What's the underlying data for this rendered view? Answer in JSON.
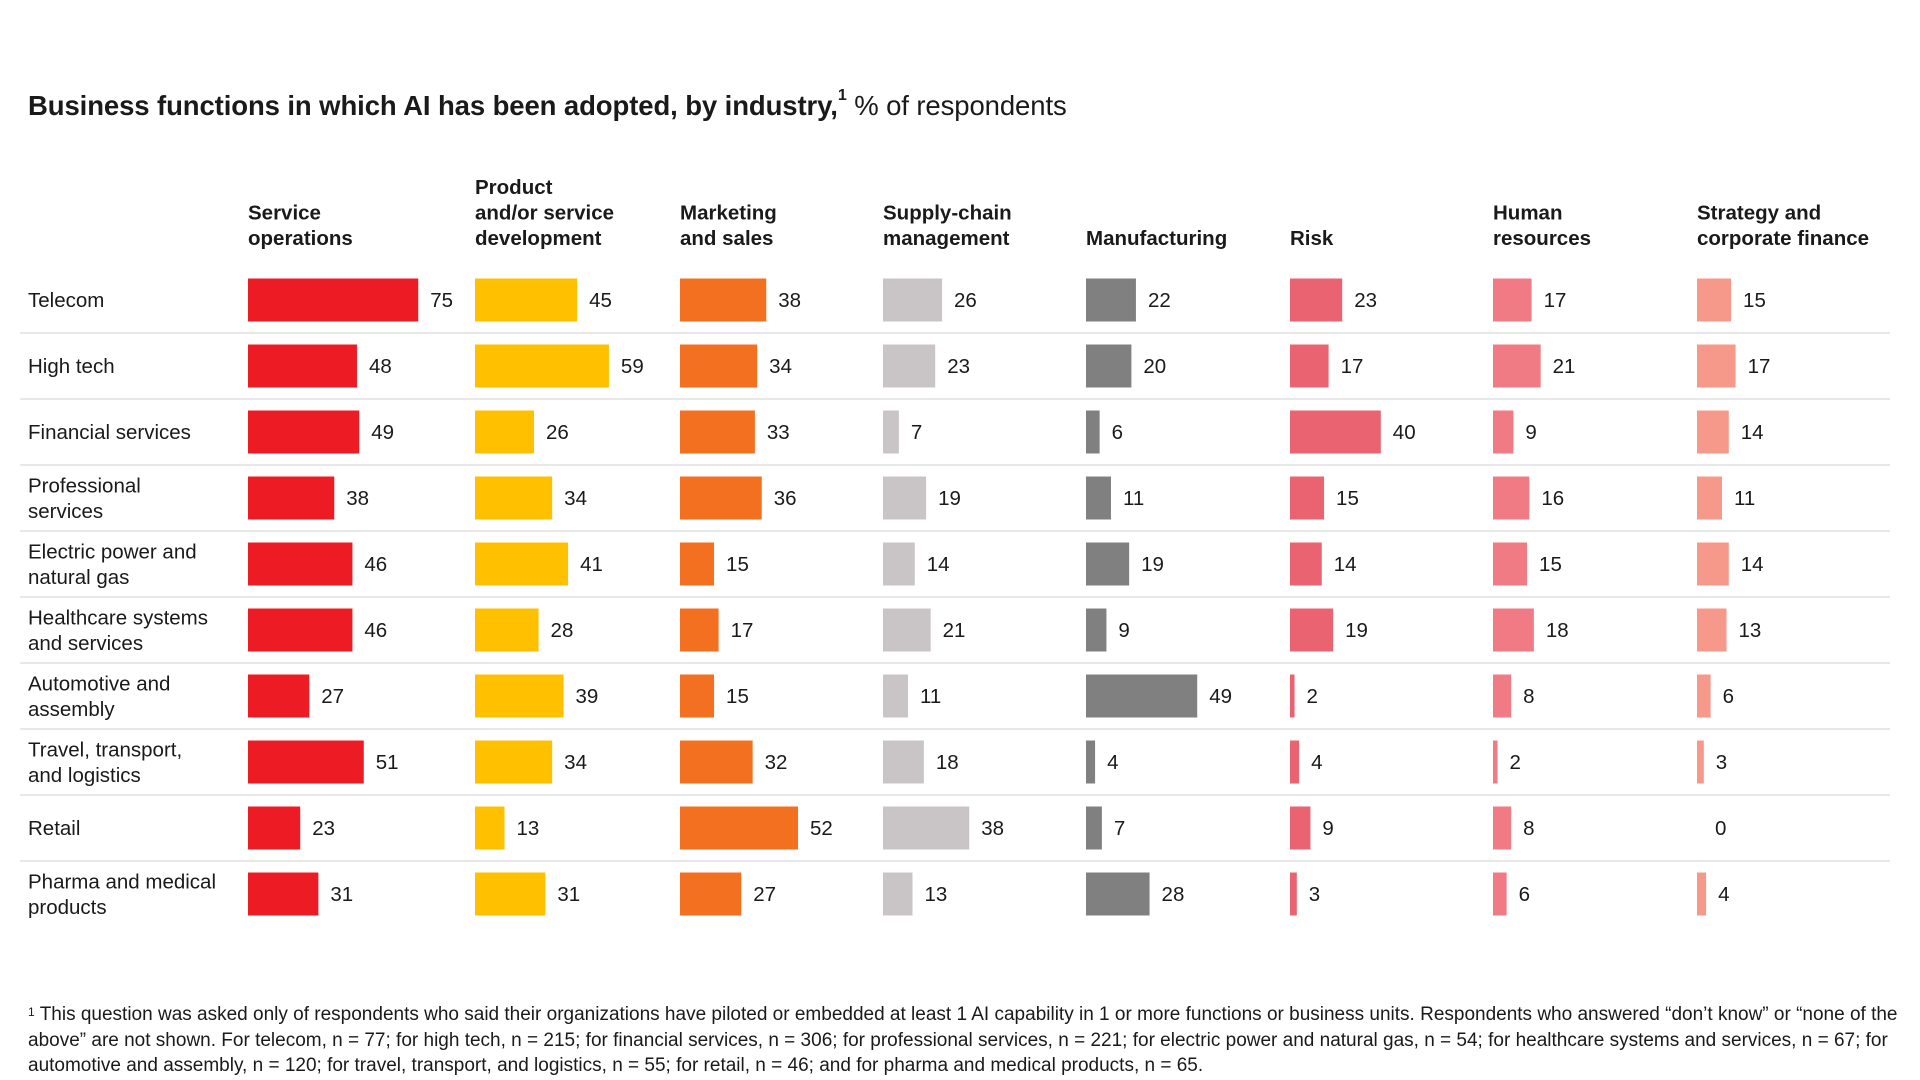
{
  "title": {
    "main": "Business functions in which AI has been adopted, by industry,",
    "marker": "1",
    "unit": "% of respondents"
  },
  "chart_data": {
    "type": "bar",
    "title": "Business functions in which AI has been adopted, by industry, % of respondents",
    "xlabel": "",
    "ylabel": "% of respondents",
    "categories": [
      "Telecom",
      "High tech",
      "Financial services",
      "Professional services",
      "Electric power and natural gas",
      "Healthcare systems and services",
      "Automotive and assembly",
      "Travel, transport, and logistics",
      "Retail",
      "Pharma and medical products"
    ],
    "category_lines": [
      [
        "Telecom"
      ],
      [
        "High tech"
      ],
      [
        "Financial services"
      ],
      [
        "Professional",
        "services"
      ],
      [
        "Electric power and",
        "natural gas"
      ],
      [
        "Healthcare systems",
        "and services"
      ],
      [
        "Automotive and",
        "assembly"
      ],
      [
        "Travel, transport,",
        "and logistics"
      ],
      [
        "Retail"
      ],
      [
        "Pharma and medical",
        "products"
      ]
    ],
    "series": [
      {
        "name": "Service operations",
        "header_lines": [
          "Service",
          "operations"
        ],
        "color": "#ed1c24",
        "values": [
          75,
          48,
          49,
          38,
          46,
          46,
          27,
          51,
          23,
          31
        ]
      },
      {
        "name": "Product and/or service development",
        "header_lines": [
          "Product",
          "and/or service",
          "development"
        ],
        "color": "#ffc000",
        "values": [
          45,
          59,
          26,
          34,
          41,
          28,
          39,
          34,
          13,
          31
        ]
      },
      {
        "name": "Marketing and sales",
        "header_lines": [
          "Marketing",
          "and sales"
        ],
        "color": "#f37021",
        "values": [
          38,
          34,
          33,
          36,
          15,
          17,
          15,
          32,
          52,
          27
        ]
      },
      {
        "name": "Supply-chain management",
        "header_lines": [
          "Supply-chain",
          "management"
        ],
        "color": "#c9c5c6",
        "values": [
          26,
          23,
          7,
          19,
          14,
          21,
          11,
          18,
          38,
          13
        ]
      },
      {
        "name": "Manufacturing",
        "header_lines": [
          "Manufacturing"
        ],
        "color": "#808080",
        "values": [
          22,
          20,
          6,
          11,
          19,
          9,
          49,
          4,
          7,
          28
        ]
      },
      {
        "name": "Risk",
        "header_lines": [
          "Risk"
        ],
        "color": "#e96371",
        "values": [
          23,
          17,
          40,
          15,
          14,
          19,
          2,
          4,
          9,
          3
        ]
      },
      {
        "name": "Human resources",
        "header_lines": [
          "Human",
          "resources"
        ],
        "color": "#f07b84",
        "values": [
          17,
          21,
          9,
          16,
          15,
          18,
          8,
          2,
          8,
          6
        ]
      },
      {
        "name": "Strategy and corporate finance",
        "header_lines": [
          "Strategy and",
          "corporate finance"
        ],
        "color": "#f7998a",
        "values": [
          15,
          17,
          14,
          11,
          14,
          13,
          6,
          3,
          0,
          4
        ]
      }
    ],
    "ylim": [
      0,
      100
    ],
    "grid": false,
    "legend": "column headers"
  },
  "footnote": {
    "marker": "1",
    "text": "This question was asked only of respondents who said their organizations have piloted or embedded at least 1 AI capability in 1 or more functions or business units. Respondents who answered “don’t know” or “none of the above” are not shown. For telecom, n = 77; for high tech, n = 215; for financial services, n = 306; for professional services, n = 221; for electric power and natural gas, n = 54; for healthcare systems and services, n = 67; for automotive and assembly, n = 120; for travel, transport, and logistics, n = 55; for retail, n = 46; and for pharma and medical products, n = 65."
  }
}
